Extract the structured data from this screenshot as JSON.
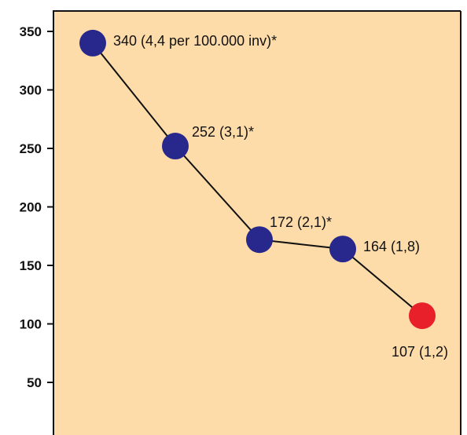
{
  "chart_data": {
    "type": "line",
    "title": "",
    "xlabel": "",
    "ylabel": "",
    "ylim": [
      0,
      350
    ],
    "yticks": [
      "350",
      "300",
      "250",
      "200",
      "150",
      "100",
      "50"
    ],
    "grid": false,
    "legend": "none",
    "x": [
      1,
      2,
      3,
      4,
      5
    ],
    "series": [
      {
        "values": [
          340,
          252,
          172,
          164,
          107
        ],
        "labels": [
          "340 (4,4 per 100.000 inv)*",
          "252 (3,1)*",
          "172 (2,1)*",
          "164 (1,8)",
          "107 (1,2)"
        ],
        "point_colors": [
          "#28288c",
          "#28288c",
          "#28288c",
          "#28288c",
          "#e8202a"
        ]
      }
    ],
    "colors": {
      "plot_background": "#fddcaa",
      "line": "#111111",
      "axis": "#111111"
    }
  }
}
